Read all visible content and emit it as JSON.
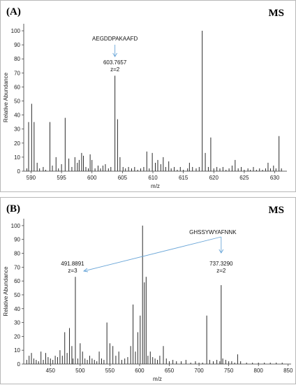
{
  "chart_data": [
    {
      "type": "bar",
      "panel_label": "(A)",
      "corner_label": "MS",
      "xlabel": "m/z",
      "ylabel": "Relative Abundance",
      "xlim": [
        588.8,
        632
      ],
      "ylim": [
        0,
        105
      ],
      "xticks": [
        590,
        595,
        600,
        605,
        610,
        615,
        620,
        625,
        630
      ],
      "yticks": [
        0,
        10,
        20,
        30,
        40,
        50,
        60,
        70,
        80,
        90,
        100
      ],
      "peaks": {
        "x": [
          589.3,
          589.6,
          590.1,
          590.5,
          591.0,
          591.4,
          592.0,
          592.4,
          593.1,
          593.5,
          594.1,
          594.5,
          595.0,
          595.6,
          596.2,
          596.7,
          597.2,
          597.6,
          597.9,
          598.3,
          598.6,
          599.0,
          599.4,
          599.7,
          600.0,
          600.5,
          601.0,
          601.4,
          601.8,
          602.2,
          602.7,
          603.1,
          603.77,
          604.2,
          604.6,
          605.1,
          605.5,
          606.0,
          606.5,
          607.0,
          607.5,
          608.0,
          608.5,
          609.0,
          609.4,
          609.9,
          610.4,
          610.8,
          611.3,
          611.7,
          612.1,
          612.6,
          613.0,
          613.5,
          614.0,
          614.5,
          615.0,
          615.7,
          616.0,
          616.5,
          617.1,
          617.6,
          618.1,
          618.6,
          619.1,
          619.5,
          620.0,
          620.5,
          621.0,
          621.5,
          622.0,
          622.5,
          623.0,
          623.5,
          624.0,
          624.5,
          625.0,
          625.6,
          626.0,
          626.5,
          627.0,
          627.5,
          628.0,
          628.5,
          628.9,
          629.3,
          629.8,
          630.2,
          630.7,
          631.1
        ],
        "y": [
          2,
          35,
          48,
          35,
          6,
          2,
          3,
          1,
          35,
          4,
          10,
          2,
          5,
          38,
          9,
          3,
          10,
          6,
          8,
          13,
          11,
          3,
          2,
          12,
          8,
          2,
          4,
          2,
          4,
          5,
          2,
          3,
          68,
          37,
          10,
          3,
          2,
          3,
          2,
          3,
          1,
          2,
          3,
          14,
          2,
          13,
          6,
          8,
          5,
          10,
          3,
          7,
          2,
          3,
          1,
          3,
          1,
          2,
          6,
          3,
          2,
          3,
          100,
          13,
          3,
          24,
          2,
          3,
          2,
          3,
          1,
          2,
          4,
          8,
          2,
          3,
          1,
          2,
          1,
          3,
          1,
          2,
          1,
          2,
          6,
          2,
          4,
          2,
          25,
          2
        ]
      },
      "annotations": [
        {
          "sequence": "AEGDDPAKAAFD",
          "mass": "603.7657",
          "charge": "z=2",
          "x": 603.77
        }
      ]
    },
    {
      "type": "bar",
      "panel_label": "(B)",
      "corner_label": "MS",
      "xlabel": "m/z",
      "ylabel": "Relative Abundance",
      "xlim": [
        405,
        855
      ],
      "ylim": [
        0,
        105
      ],
      "xticks": [
        450,
        500,
        550,
        600,
        650,
        700,
        750,
        800,
        850
      ],
      "yticks": [
        0,
        10,
        20,
        30,
        40,
        50,
        60,
        70,
        80,
        90,
        100
      ],
      "peaks": {
        "x": [
          410,
          414,
          418,
          422,
          426,
          430,
          434,
          438,
          442,
          446,
          450,
          454,
          458,
          462,
          466,
          470,
          474,
          478,
          482,
          486,
          488,
          491.9,
          496,
          500,
          504,
          508,
          512,
          516,
          520,
          524,
          528,
          532,
          536,
          540,
          545,
          550,
          555,
          560,
          565,
          570,
          575,
          580,
          585,
          589,
          593,
          597,
          601,
          605,
          608,
          611,
          614,
          618,
          622,
          626,
          630,
          634,
          640,
          645,
          650,
          656,
          662,
          670,
          678,
          686,
          694,
          700,
          706,
          713,
          718,
          724,
          730,
          735,
          737.3,
          740,
          745,
          750,
          755,
          760,
          765,
          770,
          780,
          790,
          800,
          810,
          820,
          830,
          840
        ],
        "y": [
          3,
          6,
          8,
          4,
          3,
          2,
          9,
          3,
          8,
          5,
          4,
          3,
          6,
          5,
          10,
          6,
          23,
          8,
          26,
          13,
          4,
          63,
          4,
          15,
          9,
          4,
          3,
          6,
          4,
          3,
          2,
          9,
          4,
          3,
          30,
          15,
          13,
          6,
          9,
          3,
          4,
          5,
          13,
          43,
          9,
          23,
          35,
          100,
          59,
          63,
          6,
          9,
          5,
          4,
          3,
          6,
          13,
          4,
          2,
          3,
          2,
          2,
          3,
          1,
          2,
          1,
          1,
          35,
          3,
          2,
          3,
          2,
          57,
          4,
          3,
          2,
          2,
          1,
          7,
          2,
          1,
          1,
          1,
          1,
          1,
          1,
          1
        ]
      },
      "annotations": [
        {
          "sequence": "GHSSYWYAFNNK",
          "mass": "491.8891",
          "charge": "z=3",
          "x": 491.9,
          "y": 63
        },
        {
          "mass": "737.3290",
          "charge": "z=2",
          "x": 737.3,
          "y": 57
        }
      ]
    }
  ],
  "colors": {
    "peak": "#2b2b2b",
    "arrow": "#6aa6d8",
    "axis": "#333333"
  }
}
